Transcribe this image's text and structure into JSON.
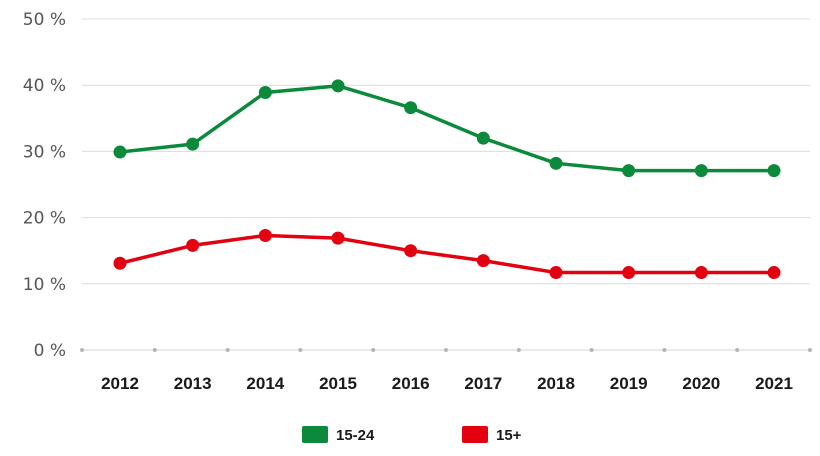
{
  "chart_data": {
    "type": "line",
    "title": "",
    "xlabel": "",
    "ylabel": "",
    "x": [
      "2012",
      "2013",
      "2014",
      "2015",
      "2016",
      "2017",
      "2018",
      "2019",
      "2020",
      "2021"
    ],
    "y_ticks": [
      "0 %",
      "10 %",
      "20 %",
      "30 %",
      "40 %",
      "50 %"
    ],
    "ylim": [
      0,
      50
    ],
    "y_unit": "%",
    "grid": true,
    "legend_position": "bottom-center",
    "series": [
      {
        "name": "15-24",
        "color": "#0a8a3a",
        "values": [
          29.9,
          31.1,
          38.9,
          39.9,
          36.6,
          32.0,
          28.2,
          27.1,
          27.1,
          27.1
        ]
      },
      {
        "name": "15+",
        "color": "#e3000f",
        "values": [
          13.1,
          15.8,
          17.3,
          16.9,
          15.0,
          13.5,
          11.7,
          11.7,
          11.7,
          11.7
        ]
      }
    ]
  }
}
